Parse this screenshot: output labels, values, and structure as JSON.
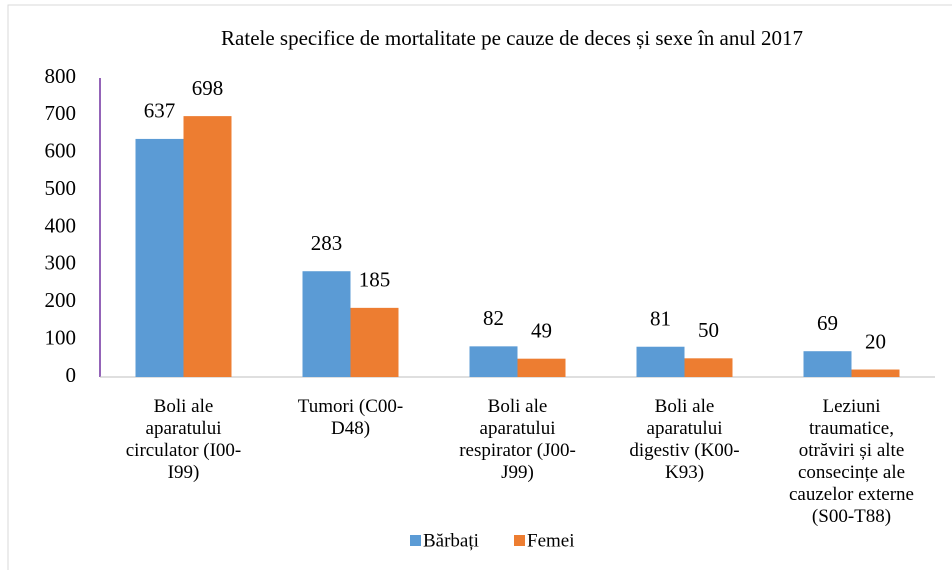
{
  "chart_data": {
    "type": "bar",
    "title": "Ratele specifice de mortalitate pe cauze de deces și sexe în anul 2017",
    "categories": [
      "Boli ale aparatului circulator  (I00-I99)",
      "Tumori  (C00-D48)",
      "Boli ale aparatului respirator (J00-J99)",
      "Boli ale aparatului digestiv (K00-K93)",
      "Leziuni traumatice, otrăviri și alte consecințe ale cauzelor externe (S00-T88)"
    ],
    "series": [
      {
        "name": "Bărbați",
        "color": "#5b9bd5",
        "values": [
          637,
          283,
          82,
          81,
          69
        ]
      },
      {
        "name": "Femei",
        "color": "#ed7d31",
        "values": [
          698,
          185,
          49,
          50,
          20
        ]
      }
    ],
    "ylim": [
      0,
      800
    ],
    "yticks": [
      0,
      100,
      200,
      300,
      400,
      500,
      600,
      700,
      800
    ],
    "grid": false,
    "legend": "bottom"
  }
}
